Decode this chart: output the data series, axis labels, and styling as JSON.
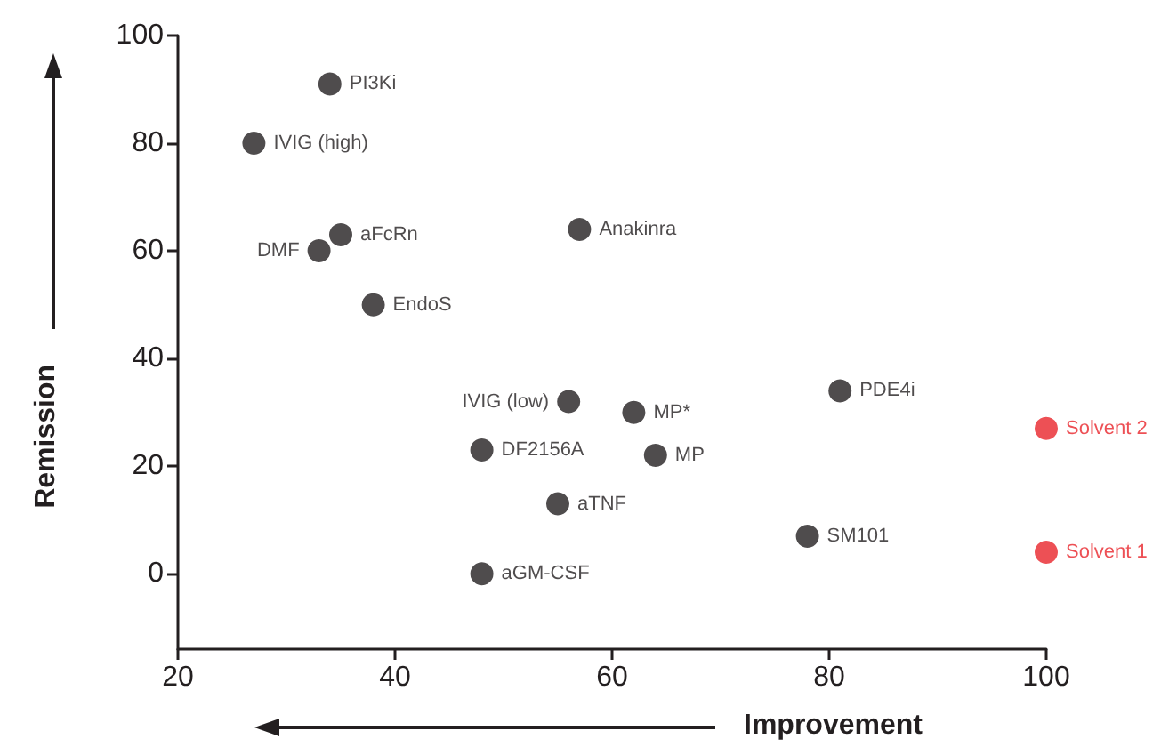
{
  "chart_data": {
    "type": "scatter",
    "xlabel": "Improvement",
    "ylabel": "Remission",
    "series": [
      {
        "color": "#231f20",
        "x": [
          34,
          27,
          35,
          33,
          57,
          38,
          56,
          62,
          81,
          48,
          64,
          55,
          78,
          48
        ],
        "values": [
          91,
          80,
          63,
          60,
          64,
          50,
          32,
          30,
          34,
          23,
          22,
          13,
          7,
          0
        ]
      },
      {
        "color": "#e8242a",
        "x": [
          100,
          100
        ],
        "values": [
          27,
          4
        ]
      }
    ],
    "annotations": [
      {
        "text": "PI3Ki",
        "x": 34,
        "y": 91
      },
      {
        "text": "IVIG (high)",
        "x": 27,
        "y": 80
      },
      {
        "text": "aFcRn",
        "x": 35,
        "y": 63
      },
      {
        "text": "DMF",
        "x": 33,
        "y": 60
      },
      {
        "text": "Anakinra",
        "x": 57,
        "y": 64
      },
      {
        "text": "EndoS",
        "x": 38,
        "y": 50
      },
      {
        "text": "IVIG (low)",
        "x": 56,
        "y": 32
      },
      {
        "text": "MP*",
        "x": 62,
        "y": 30
      },
      {
        "text": "PDE4i",
        "x": 81,
        "y": 34
      },
      {
        "text": "DF2156A",
        "x": 48,
        "y": 23
      },
      {
        "text": "MP",
        "x": 64,
        "y": 22
      },
      {
        "text": "aTNF",
        "x": 55,
        "y": 13
      },
      {
        "text": "SM101",
        "x": 78,
        "y": 7
      },
      {
        "text": "aGM-CSF",
        "x": 48,
        "y": 0
      },
      {
        "text": "Solvent 2",
        "x": 100,
        "y": 27
      },
      {
        "text": "Solvent 1",
        "x": 100,
        "y": 4
      }
    ],
    "xlim": [
      20,
      100
    ],
    "xticks": [
      20,
      40,
      60,
      80,
      100
    ],
    "ylim": [
      -14,
      100
    ],
    "yticks": [
      0,
      20,
      40,
      60,
      80,
      100
    ],
    "marker": "circle"
  }
}
